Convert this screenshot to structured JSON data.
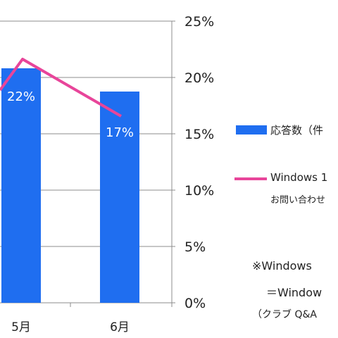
{
  "chart_data": {
    "type": "bar",
    "categories": [
      "5月",
      "6月"
    ],
    "series": [
      {
        "name": "応答数（件",
        "type": "bar",
        "color": "#1f6ef0",
        "values": [
          null,
          null
        ]
      },
      {
        "name": "Windows 1",
        "type": "line",
        "color": "#e8459a",
        "values": [
          22,
          17
        ],
        "data_labels": [
          "22%",
          "17%"
        ]
      }
    ],
    "right_axis": {
      "ylim": [
        0,
        25
      ],
      "ticks": [
        "0%",
        "5%",
        "10%",
        "15%",
        "20%",
        "25%"
      ]
    },
    "grid": true
  },
  "legend": {
    "bar_label": "応答数（件",
    "line_label": "Windows 1",
    "line_sublabel": "お問い合わせ"
  },
  "note": {
    "line1": "※Windows",
    "line2": "＝Window",
    "line3": "（クラブ Q&A"
  }
}
